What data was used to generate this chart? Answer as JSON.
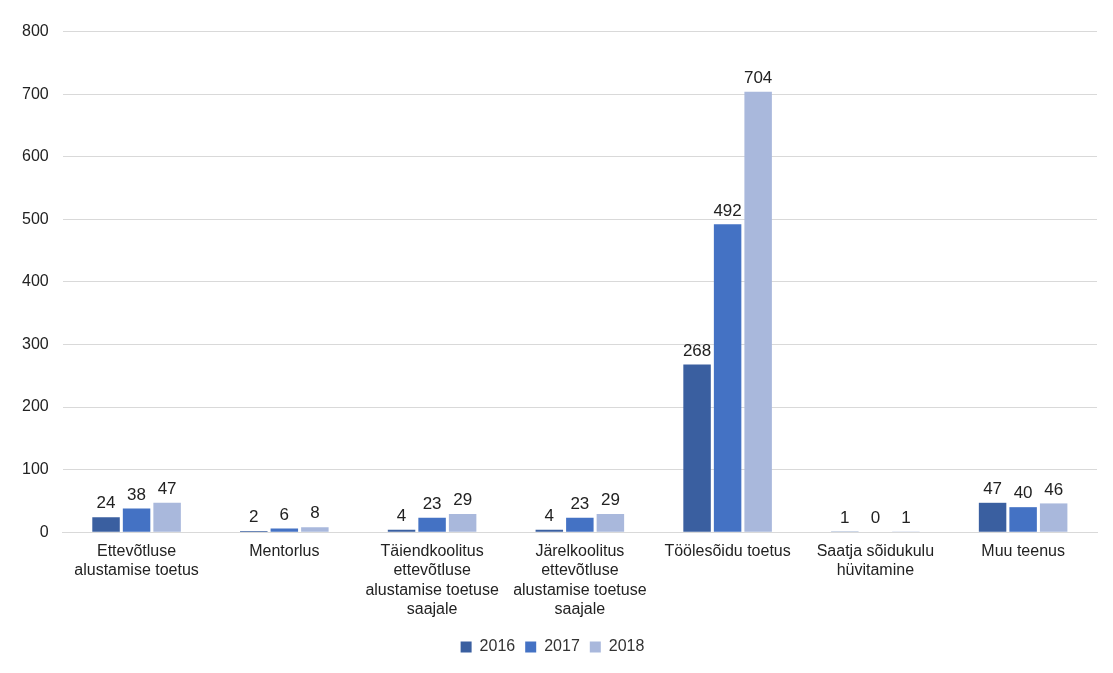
{
  "chart_data": {
    "type": "bar",
    "categories": [
      "Ettevõtluse alustamise toetus",
      "Mentorlus",
      "Täiendkoolitus ettevõtluse alustamise toetuse saajale",
      "Järelkoolitus ettevõtluse alustamise toetuse saajale",
      "Töölesõidu toetus",
      "Saatja sõidukulu hüvitamine",
      "Muu teenus"
    ],
    "series": [
      {
        "name": "2016",
        "color": "#3a5fa0",
        "values": [
          24,
          2,
          4,
          4,
          268,
          1,
          47
        ]
      },
      {
        "name": "2017",
        "color": "#4472c4",
        "values": [
          38,
          6,
          23,
          23,
          492,
          0,
          40
        ]
      },
      {
        "name": "2018",
        "color": "#a9b8dc",
        "values": [
          47,
          8,
          29,
          29,
          704,
          1,
          46
        ]
      }
    ],
    "ylim": [
      0,
      800
    ],
    "yticks": [
      0,
      100,
      200,
      300,
      400,
      500,
      600,
      700,
      800
    ],
    "grid": "y",
    "legend": "bottom",
    "data_labels": true
  }
}
